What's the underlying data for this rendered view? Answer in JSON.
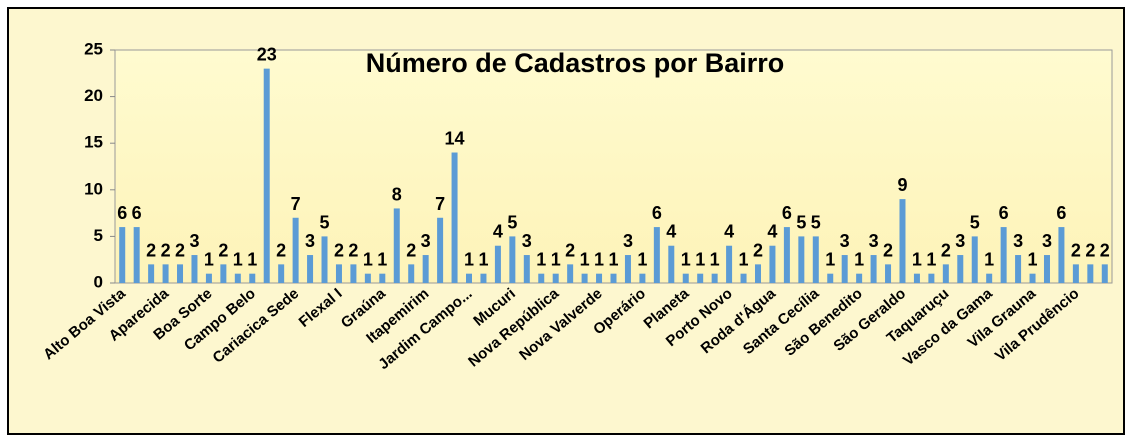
{
  "chart_data": {
    "type": "bar",
    "title": "Número de Cadastros por Bairro",
    "categories": [
      "Alto Boa Vista",
      null,
      null,
      "Aparecida",
      null,
      null,
      "Boa Sorte",
      null,
      null,
      "Campo Belo",
      null,
      null,
      "Cariacica Sede",
      null,
      null,
      "Flexal I",
      null,
      null,
      "Graúna",
      null,
      null,
      "Itapemirim",
      null,
      null,
      "Jardim Campo...",
      null,
      null,
      "Mucuri",
      null,
      null,
      "Nova República",
      null,
      null,
      "Nova Valverde",
      null,
      null,
      "Operário",
      null,
      null,
      "Planeta",
      null,
      null,
      "Porto Novo",
      null,
      null,
      "Roda d'Água",
      null,
      null,
      "Santa Cecília",
      null,
      null,
      "São Benedito",
      null,
      null,
      "São Geraldo",
      null,
      null,
      "Taquaruçu",
      null,
      null,
      "Vasco da Gama",
      null,
      null,
      "Vila Grauna",
      null,
      null,
      "Vila Prudêncio",
      null,
      null
    ],
    "values": [
      6,
      6,
      2,
      2,
      2,
      3,
      1,
      2,
      1,
      1,
      23,
      2,
      7,
      3,
      5,
      2,
      2,
      1,
      1,
      8,
      2,
      3,
      7,
      14,
      1,
      1,
      4,
      5,
      3,
      1,
      1,
      2,
      1,
      1,
      1,
      3,
      1,
      6,
      4,
      1,
      1,
      1,
      4,
      1,
      2,
      4,
      6,
      5,
      5,
      1,
      3,
      1,
      3,
      2,
      9,
      1,
      1,
      2,
      3,
      5,
      1,
      6,
      3,
      1,
      3,
      6,
      2,
      2,
      2
    ],
    "color": "#5b9bd5",
    "ylim": [
      0,
      25
    ],
    "yticks": [
      0,
      5,
      10,
      15,
      20,
      25
    ],
    "grid": false
  }
}
